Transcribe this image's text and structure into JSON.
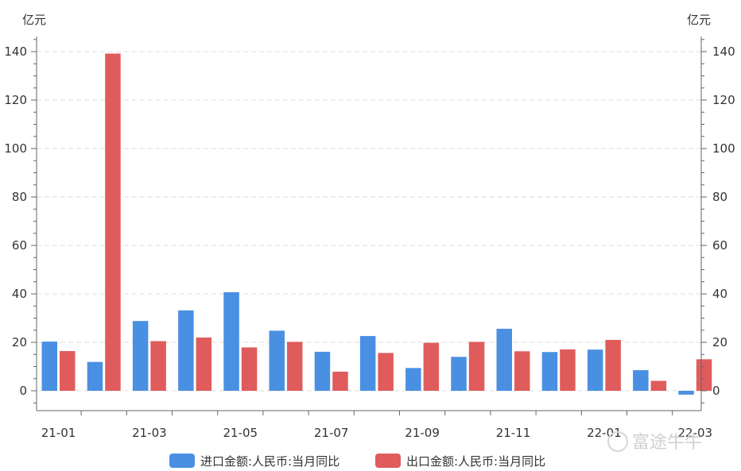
{
  "watermark": "富途牛牛",
  "chart_data": {
    "type": "bar",
    "categories": [
      "21-01",
      "21-02",
      "21-03",
      "21-04",
      "21-05",
      "21-06",
      "21-07",
      "21-08",
      "21-09",
      "21-10",
      "21-11",
      "21-12",
      "22-01",
      "22-02",
      "22-03"
    ],
    "x_tick_labels": [
      "21-01",
      "21-03",
      "21-05",
      "21-07",
      "21-09",
      "21-11",
      "22-01",
      "22-03"
    ],
    "series": [
      {
        "name": "进口金额:人民币:当月同比",
        "color": "#4a90e2",
        "values": [
          20.3,
          11.9,
          28.8,
          33.2,
          40.7,
          24.8,
          16.1,
          22.6,
          9.4,
          14.0,
          25.6,
          16.0,
          17.0,
          8.5,
          -1.6
        ]
      },
      {
        "name": "出口金额:人民币:当月同比",
        "color": "#e05c5c",
        "values": [
          16.4,
          139.2,
          20.5,
          22.0,
          17.9,
          20.2,
          7.9,
          15.6,
          19.8,
          20.2,
          16.3,
          17.1,
          21.0,
          4.1,
          13.0
        ]
      }
    ],
    "ylabel_left": "亿元",
    "ylabel_right": "亿元",
    "ylim": [
      -8,
      146
    ],
    "yticks": [
      0,
      20,
      40,
      60,
      80,
      100,
      120,
      140
    ],
    "grid": true,
    "legend": "bottom"
  }
}
